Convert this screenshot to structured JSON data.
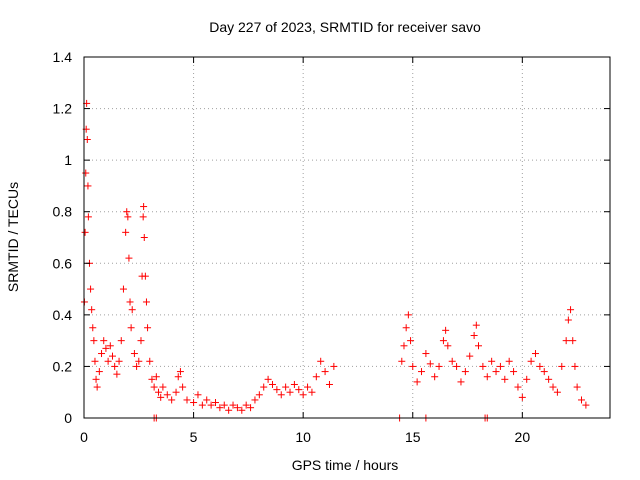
{
  "chart_data": {
    "type": "scatter",
    "title": "Day 227 of 2023, SRMTID for receiver savo",
    "xlabel": "GPS time / hours",
    "ylabel": "SRMTID / TECUs",
    "xlim": [
      0,
      24
    ],
    "ylim": [
      0,
      1.4
    ],
    "x_ticks": [
      0,
      5,
      10,
      15,
      20
    ],
    "y_ticks": [
      0,
      0.2,
      0.4,
      0.6,
      0.8,
      1,
      1.2,
      1.4
    ],
    "x_tick_labels": [
      "0",
      "5",
      "10",
      "15",
      "20"
    ],
    "y_tick_labels": [
      "0",
      "0.2",
      "0.4",
      "0.6",
      "0.8",
      "1",
      "1.2",
      "1.4"
    ],
    "grid": true,
    "marker": "+",
    "color": "#ff0000",
    "series": [
      {
        "name": "savo",
        "points": [
          [
            0.02,
            0.45
          ],
          [
            0.05,
            0.72
          ],
          [
            0.08,
            0.95
          ],
          [
            0.1,
            1.12
          ],
          [
            0.12,
            1.22
          ],
          [
            0.15,
            1.08
          ],
          [
            0.18,
            0.9
          ],
          [
            0.2,
            0.78
          ],
          [
            0.25,
            0.6
          ],
          [
            0.3,
            0.5
          ],
          [
            0.35,
            0.42
          ],
          [
            0.4,
            0.35
          ],
          [
            0.45,
            0.3
          ],
          [
            0.5,
            0.22
          ],
          [
            0.55,
            0.15
          ],
          [
            0.6,
            0.12
          ],
          [
            0.7,
            0.18
          ],
          [
            0.8,
            0.25
          ],
          [
            0.9,
            0.3
          ],
          [
            1.0,
            0.27
          ],
          [
            1.1,
            0.22
          ],
          [
            1.2,
            0.28
          ],
          [
            1.3,
            0.24
          ],
          [
            1.4,
            0.2
          ],
          [
            1.5,
            0.17
          ],
          [
            1.6,
            0.22
          ],
          [
            1.7,
            0.3
          ],
          [
            1.8,
            0.5
          ],
          [
            1.9,
            0.72
          ],
          [
            1.95,
            0.8
          ],
          [
            2.0,
            0.78
          ],
          [
            2.05,
            0.62
          ],
          [
            2.1,
            0.45
          ],
          [
            2.15,
            0.35
          ],
          [
            2.2,
            0.42
          ],
          [
            2.3,
            0.25
          ],
          [
            2.4,
            0.2
          ],
          [
            2.5,
            0.22
          ],
          [
            2.6,
            0.3
          ],
          [
            2.65,
            0.55
          ],
          [
            2.7,
            0.78
          ],
          [
            2.72,
            0.82
          ],
          [
            2.75,
            0.7
          ],
          [
            2.8,
            0.55
          ],
          [
            2.85,
            0.45
          ],
          [
            2.9,
            0.35
          ],
          [
            3.0,
            0.22
          ],
          [
            3.1,
            0.15
          ],
          [
            3.2,
            0.12
          ],
          [
            3.3,
            0.16
          ],
          [
            3.4,
            0.1
          ],
          [
            3.5,
            0.08
          ],
          [
            3.6,
            0.12
          ],
          [
            3.8,
            0.09
          ],
          [
            4.0,
            0.07
          ],
          [
            4.2,
            0.1
          ],
          [
            4.3,
            0.16
          ],
          [
            4.4,
            0.18
          ],
          [
            4.5,
            0.12
          ],
          [
            4.7,
            0.07
          ],
          [
            5.0,
            0.06
          ],
          [
            5.2,
            0.09
          ],
          [
            5.4,
            0.05
          ],
          [
            5.6,
            0.07
          ],
          [
            5.8,
            0.05
          ],
          [
            6.0,
            0.06
          ],
          [
            6.2,
            0.04
          ],
          [
            6.4,
            0.05
          ],
          [
            6.6,
            0.03
          ],
          [
            6.8,
            0.05
          ],
          [
            7.0,
            0.04
          ],
          [
            7.2,
            0.03
          ],
          [
            7.4,
            0.05
          ],
          [
            7.6,
            0.04
          ],
          [
            7.8,
            0.07
          ],
          [
            8.0,
            0.09
          ],
          [
            8.2,
            0.12
          ],
          [
            8.4,
            0.15
          ],
          [
            8.6,
            0.13
          ],
          [
            8.8,
            0.11
          ],
          [
            9.0,
            0.09
          ],
          [
            9.2,
            0.12
          ],
          [
            9.4,
            0.1
          ],
          [
            9.6,
            0.13
          ],
          [
            9.8,
            0.11
          ],
          [
            10.0,
            0.09
          ],
          [
            10.2,
            0.12
          ],
          [
            10.4,
            0.1
          ],
          [
            10.6,
            0.16
          ],
          [
            10.8,
            0.22
          ],
          [
            11.0,
            0.18
          ],
          [
            11.2,
            0.13
          ],
          [
            11.4,
            0.2
          ],
          [
            14.5,
            0.22
          ],
          [
            14.6,
            0.28
          ],
          [
            14.7,
            0.35
          ],
          [
            14.8,
            0.4
          ],
          [
            14.9,
            0.3
          ],
          [
            15.0,
            0.2
          ],
          [
            15.2,
            0.14
          ],
          [
            15.4,
            0.18
          ],
          [
            15.6,
            0.25
          ],
          [
            15.8,
            0.21
          ],
          [
            16.0,
            0.16
          ],
          [
            16.2,
            0.2
          ],
          [
            16.4,
            0.3
          ],
          [
            16.5,
            0.34
          ],
          [
            16.6,
            0.28
          ],
          [
            16.8,
            0.22
          ],
          [
            17.0,
            0.2
          ],
          [
            17.2,
            0.14
          ],
          [
            17.4,
            0.18
          ],
          [
            17.6,
            0.24
          ],
          [
            17.8,
            0.32
          ],
          [
            17.9,
            0.36
          ],
          [
            18.0,
            0.28
          ],
          [
            18.2,
            0.2
          ],
          [
            18.4,
            0.16
          ],
          [
            18.6,
            0.22
          ],
          [
            18.8,
            0.18
          ],
          [
            19.0,
            0.2
          ],
          [
            19.2,
            0.15
          ],
          [
            19.4,
            0.22
          ],
          [
            19.6,
            0.18
          ],
          [
            19.8,
            0.12
          ],
          [
            20.0,
            0.08
          ],
          [
            20.2,
            0.15
          ],
          [
            20.4,
            0.22
          ],
          [
            20.6,
            0.25
          ],
          [
            20.8,
            0.2
          ],
          [
            21.0,
            0.18
          ],
          [
            21.2,
            0.15
          ],
          [
            21.4,
            0.12
          ],
          [
            21.6,
            0.1
          ],
          [
            21.8,
            0.2
          ],
          [
            22.0,
            0.3
          ],
          [
            22.1,
            0.38
          ],
          [
            22.2,
            0.42
          ],
          [
            22.3,
            0.3
          ],
          [
            22.4,
            0.2
          ],
          [
            22.5,
            0.12
          ],
          [
            22.7,
            0.07
          ],
          [
            22.9,
            0.05
          ],
          [
            3.2,
            0.0
          ],
          [
            3.3,
            0.0
          ],
          [
            14.4,
            0.0
          ],
          [
            15.6,
            0.0
          ],
          [
            18.3,
            0.0
          ],
          [
            18.4,
            0.0
          ]
        ]
      }
    ]
  }
}
